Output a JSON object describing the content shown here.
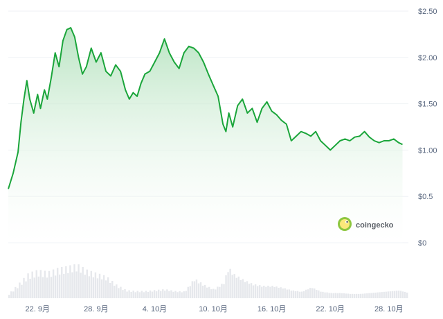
{
  "brand": {
    "name": "coingecko",
    "logo_icon": "gecko-logo-icon",
    "color": "#8dc63f"
  },
  "colors": {
    "line": "#1aa53a",
    "area_top": "#b9e4c2",
    "area_bottom": "#ffffff",
    "volume": "#e6e8ec",
    "grid": "#eff2f5"
  },
  "chart_data": {
    "type": "area",
    "xlabel": "",
    "ylabel": "",
    "y_ticks": [
      "$2.50",
      "$2.00",
      "$1.50",
      "$1.00",
      "$0.5",
      "$0"
    ],
    "y_tick_values": [
      2.5,
      2.0,
      1.5,
      1.0,
      0.5,
      0
    ],
    "ylim": [
      0,
      2.5
    ],
    "x_ticks": [
      "22. 9月",
      "28. 9月",
      "4. 10月",
      "10. 10月",
      "16. 10月",
      "22. 10月",
      "28. 10月"
    ],
    "x_tick_days": [
      3,
      9,
      15,
      21,
      27,
      33,
      39
    ],
    "x_range_days": [
      0,
      41
    ],
    "grid": true,
    "series": [
      {
        "values": [
          [
            0.0,
            0.58
          ],
          [
            0.5,
            0.75
          ],
          [
            1.0,
            0.98
          ],
          [
            1.3,
            1.3
          ],
          [
            1.6,
            1.55
          ],
          [
            1.9,
            1.75
          ],
          [
            2.2,
            1.55
          ],
          [
            2.6,
            1.4
          ],
          [
            3.0,
            1.6
          ],
          [
            3.3,
            1.45
          ],
          [
            3.7,
            1.65
          ],
          [
            4.0,
            1.55
          ],
          [
            4.4,
            1.78
          ],
          [
            4.8,
            2.05
          ],
          [
            5.2,
            1.9
          ],
          [
            5.6,
            2.18
          ],
          [
            6.0,
            2.3
          ],
          [
            6.4,
            2.32
          ],
          [
            6.8,
            2.22
          ],
          [
            7.2,
            2.0
          ],
          [
            7.6,
            1.82
          ],
          [
            8.0,
            1.9
          ],
          [
            8.5,
            2.1
          ],
          [
            9.0,
            1.95
          ],
          [
            9.5,
            2.05
          ],
          [
            10.0,
            1.85
          ],
          [
            10.5,
            1.8
          ],
          [
            11.0,
            1.92
          ],
          [
            11.5,
            1.85
          ],
          [
            12.0,
            1.65
          ],
          [
            12.4,
            1.55
          ],
          [
            12.8,
            1.62
          ],
          [
            13.2,
            1.58
          ],
          [
            13.6,
            1.72
          ],
          [
            14.0,
            1.82
          ],
          [
            14.5,
            1.85
          ],
          [
            15.0,
            1.95
          ],
          [
            15.5,
            2.05
          ],
          [
            16.0,
            2.2
          ],
          [
            16.5,
            2.05
          ],
          [
            17.0,
            1.95
          ],
          [
            17.5,
            1.88
          ],
          [
            18.0,
            2.05
          ],
          [
            18.5,
            2.12
          ],
          [
            19.0,
            2.1
          ],
          [
            19.5,
            2.05
          ],
          [
            20.0,
            1.95
          ],
          [
            20.5,
            1.82
          ],
          [
            21.0,
            1.7
          ],
          [
            21.5,
            1.58
          ],
          [
            22.0,
            1.28
          ],
          [
            22.3,
            1.2
          ],
          [
            22.6,
            1.4
          ],
          [
            23.0,
            1.25
          ],
          [
            23.5,
            1.48
          ],
          [
            24.0,
            1.55
          ],
          [
            24.5,
            1.4
          ],
          [
            25.0,
            1.45
          ],
          [
            25.5,
            1.3
          ],
          [
            26.0,
            1.45
          ],
          [
            26.5,
            1.52
          ],
          [
            27.0,
            1.42
          ],
          [
            27.5,
            1.38
          ],
          [
            28.0,
            1.32
          ],
          [
            28.5,
            1.28
          ],
          [
            29.0,
            1.1
          ],
          [
            29.5,
            1.15
          ],
          [
            30.0,
            1.2
          ],
          [
            30.5,
            1.18
          ],
          [
            31.0,
            1.15
          ],
          [
            31.5,
            1.2
          ],
          [
            32.0,
            1.1
          ],
          [
            32.5,
            1.05
          ],
          [
            33.0,
            1.0
          ],
          [
            33.5,
            1.05
          ],
          [
            34.0,
            1.1
          ],
          [
            34.5,
            1.12
          ],
          [
            35.0,
            1.1
          ],
          [
            35.5,
            1.14
          ],
          [
            36.0,
            1.15
          ],
          [
            36.5,
            1.2
          ],
          [
            37.0,
            1.14
          ],
          [
            37.5,
            1.1
          ],
          [
            38.0,
            1.08
          ],
          [
            38.5,
            1.1
          ],
          [
            39.0,
            1.1
          ],
          [
            39.5,
            1.12
          ],
          [
            40.0,
            1.08
          ],
          [
            40.4,
            1.06
          ]
        ]
      }
    ],
    "volume_series": [
      [
        0,
        0.1
      ],
      [
        1,
        0.32
      ],
      [
        2,
        0.55
      ],
      [
        3,
        0.62
      ],
      [
        4,
        0.58
      ],
      [
        5,
        0.66
      ],
      [
        6,
        0.7
      ],
      [
        7,
        0.75
      ],
      [
        8,
        0.62
      ],
      [
        9,
        0.55
      ],
      [
        10,
        0.48
      ],
      [
        11,
        0.3
      ],
      [
        12,
        0.18
      ],
      [
        13,
        0.16
      ],
      [
        14,
        0.16
      ],
      [
        15,
        0.18
      ],
      [
        16,
        0.2
      ],
      [
        17,
        0.16
      ],
      [
        18,
        0.15
      ],
      [
        19,
        0.44
      ],
      [
        20,
        0.3
      ],
      [
        21,
        0.2
      ],
      [
        22,
        0.35
      ],
      [
        22.5,
        0.7
      ],
      [
        23,
        0.55
      ],
      [
        24,
        0.42
      ],
      [
        25,
        0.32
      ],
      [
        26,
        0.28
      ],
      [
        27,
        0.28
      ],
      [
        28,
        0.24
      ],
      [
        29,
        0.18
      ],
      [
        30,
        0.15
      ],
      [
        31,
        0.25
      ],
      [
        32,
        0.15
      ],
      [
        33,
        0.12
      ],
      [
        34,
        0.12
      ],
      [
        35,
        0.1
      ],
      [
        36,
        0.1
      ],
      [
        37,
        0.12
      ],
      [
        38,
        0.14
      ],
      [
        39,
        0.16
      ],
      [
        40,
        0.18
      ],
      [
        41,
        0.12
      ]
    ]
  }
}
